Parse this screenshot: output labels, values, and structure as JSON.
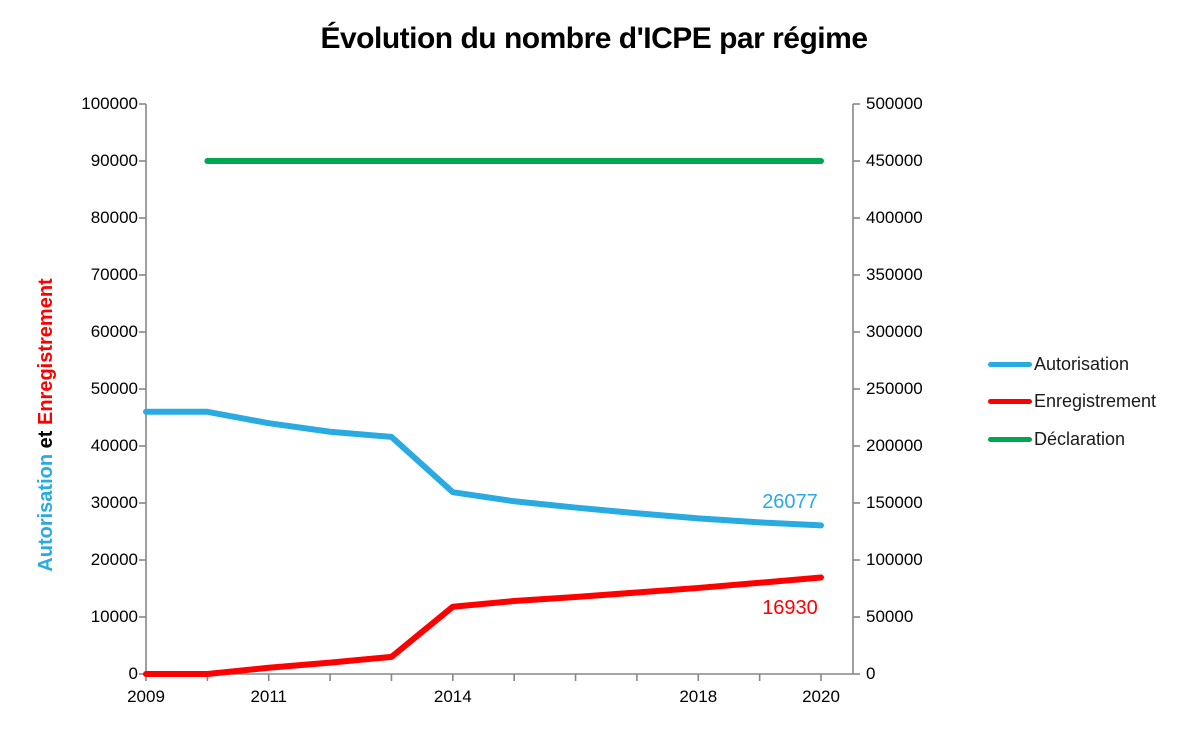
{
  "title": "Évolution du nombre d'ICPE par régime",
  "chart_data": {
    "type": "line",
    "title": "Évolution du nombre d'ICPE par régime",
    "grid": false,
    "axis_color": "#878787",
    "x": [
      "2009",
      "2010",
      "2011",
      "2012",
      "2013",
      "2014",
      "2015",
      "2016",
      "2017",
      "2018",
      "2019",
      "2020"
    ],
    "x_tick_labels": [
      "2009",
      "",
      "2011",
      "",
      "",
      "2014",
      "",
      "",
      "",
      "2018",
      "",
      "2020"
    ],
    "left_axis": {
      "min": 0,
      "max": 100000,
      "step": 10000,
      "tick_labels": [
        "0",
        "10000",
        "20000",
        "30000",
        "40000",
        "50000",
        "60000",
        "70000",
        "80000",
        "90000",
        "100000"
      ],
      "title_parts": [
        {
          "text": "Autorisation",
          "color": "#29ABE2"
        },
        {
          "text": " et ",
          "color": "#000000"
        },
        {
          "text": "Enregistrement",
          "color": "#FF0000"
        }
      ]
    },
    "right_axis": {
      "min": 0,
      "max": 500000,
      "step": 50000,
      "tick_labels": [
        "0",
        "50000",
        "100000",
        "150000",
        "200000",
        "250000",
        "300000",
        "350000",
        "400000",
        "450000",
        "500000"
      ]
    },
    "series": [
      {
        "name": "Autorisation",
        "color": "#29ABE2",
        "axis": "left",
        "values": [
          46000,
          46000,
          44000,
          42500,
          41600,
          31900,
          30300,
          29200,
          28200,
          27300,
          26600,
          26077
        ],
        "end_label": "26077"
      },
      {
        "name": "Enregistrement",
        "color": "#FF0000",
        "axis": "left",
        "values": [
          0,
          0,
          1100,
          2000,
          3000,
          11800,
          12800,
          13500,
          14300,
          15100,
          16000,
          16930
        ],
        "end_label": "16930"
      },
      {
        "name": "Déclaration",
        "color": "#00A651",
        "axis": "right",
        "values": [
          null,
          450000,
          450000,
          450000,
          450000,
          450000,
          450000,
          450000,
          450000,
          450000,
          450000,
          450000
        ],
        "end_label": ""
      }
    ],
    "legend": {
      "position": "right",
      "items": [
        "Autorisation",
        "Enregistrement",
        "Déclaration"
      ]
    }
  }
}
